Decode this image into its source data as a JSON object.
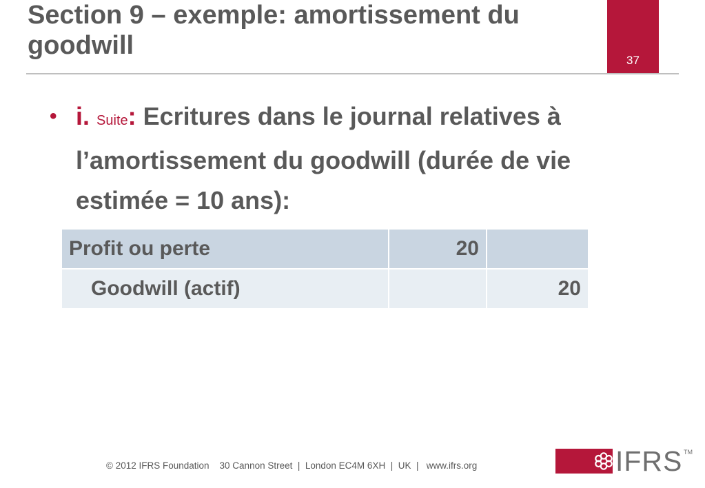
{
  "slide": {
    "title": "Section 9 – exemple: amortissement du goodwill",
    "page_number": "37"
  },
  "bullet": {
    "marker": "•",
    "index": "i.",
    "suite": "Suite",
    "separator": ":",
    "text": " Ecritures dans le journal  relatives à l’amortissement du goodwill (durée de vie estimée = 10 ans):"
  },
  "journal": {
    "rows": [
      {
        "account": "Profit ou perte",
        "debit": "20",
        "credit": ""
      },
      {
        "account": "Goodwill (actif)",
        "debit": "",
        "credit": "20"
      }
    ]
  },
  "footer": {
    "text": "© 2012 IFRS Foundation    30 Cannon Street  |  London EC4M 6XH  |  UK  |   www.ifrs.org"
  },
  "logo": {
    "text": "IFRS",
    "tm": "TM",
    "accent_color": "#b5173a"
  }
}
